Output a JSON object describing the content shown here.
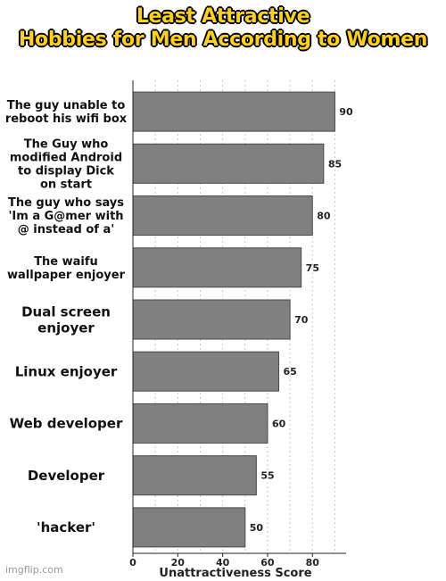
{
  "chart_data": {
    "type": "bar",
    "orientation": "horizontal",
    "title_lines": [
      "Least Attractive",
      "Hobbies for Men According to Women"
    ],
    "categories": [
      [
        "The guy unable to",
        "reboot his wifi box"
      ],
      [
        "The Guy who",
        "modified Android",
        "to display Dick",
        "on start"
      ],
      [
        "The guy who says",
        "'Im a G@mer with",
        "@ instead of a'"
      ],
      [
        "The waifu",
        "wallpaper enjoyer"
      ],
      [
        "Dual screen",
        "enjoyer"
      ],
      [
        "Linux enjoyer"
      ],
      [
        "Web developer"
      ],
      [
        "Developer"
      ],
      [
        "'hacker'"
      ]
    ],
    "values": [
      90,
      85,
      80,
      75,
      70,
      65,
      60,
      55,
      50
    ],
    "xlabel": "Unattractiveness Score",
    "xlim": [
      0,
      95
    ],
    "xticks": [
      0,
      20,
      40,
      60,
      80
    ],
    "grid": true,
    "bar_color": "#808080",
    "bar_edge_color": "#4a4a4a"
  },
  "watermark": "imgflip.com"
}
